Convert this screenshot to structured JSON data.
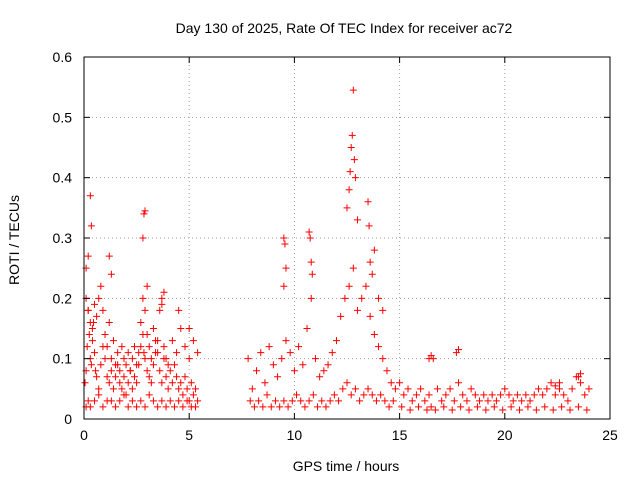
{
  "chart_data": {
    "type": "scatter",
    "title": "Day 130 of 2025, Rate Of TEC Index for receiver ac72",
    "xlabel": "GPS time / hours",
    "ylabel": "ROTI / TECUs",
    "xlim": [
      0,
      25
    ],
    "ylim": [
      0,
      0.6
    ],
    "xticks": [
      "0",
      "5",
      "10",
      "15",
      "20",
      "25"
    ],
    "yticks": [
      "0",
      "0.1",
      "0.2",
      "0.3",
      "0.4",
      "0.5",
      "0.6"
    ],
    "grid": true,
    "marker": "+",
    "color": "#ff0000",
    "series": [
      {
        "name": "ROTI",
        "x": [
          0.05,
          0.1,
          0.15,
          0.2,
          0.25,
          0.3,
          0.35,
          0.4,
          0.45,
          0.5,
          0.55,
          0.6,
          0.7,
          0.8,
          0.9,
          1.0,
          1.1,
          1.2,
          1.3,
          1.4,
          1.5,
          1.6,
          1.7,
          1.8,
          1.9,
          2.0,
          2.1,
          2.2,
          2.3,
          2.4,
          2.5,
          2.6,
          2.7,
          2.8,
          2.85,
          2.9,
          3.0,
          3.1,
          3.2,
          3.3,
          3.4,
          3.5,
          3.6,
          3.7,
          3.8,
          3.9,
          4.0,
          4.1,
          4.2,
          4.3,
          4.4,
          4.5,
          4.6,
          4.7,
          4.8,
          4.9,
          5.0,
          5.1,
          5.2,
          5.3,
          5.4,
          0.1,
          0.2,
          0.3,
          0.4,
          0.5,
          0.6,
          0.7,
          0.8,
          0.9,
          1.0,
          1.1,
          1.2,
          1.3,
          1.4,
          1.5,
          1.6,
          1.7,
          1.8,
          1.9,
          2.0,
          2.1,
          2.2,
          2.3,
          2.4,
          2.5,
          2.6,
          2.7,
          2.8,
          2.9,
          3.0,
          3.1,
          3.2,
          3.3,
          3.4,
          3.5,
          3.6,
          3.7,
          3.8,
          3.9,
          4.0,
          4.2,
          4.4,
          4.6,
          4.8,
          5.0,
          5.2,
          5.4,
          0.1,
          0.2,
          0.3,
          0.5,
          0.7,
          0.9,
          1.1,
          1.3,
          1.5,
          1.7,
          1.9,
          2.1,
          2.3,
          2.5,
          2.7,
          2.9,
          3.1,
          3.3,
          3.5,
          3.7,
          3.9,
          4.1,
          4.3,
          4.5,
          4.7,
          4.9,
          5.1,
          5.3,
          0.3,
          0.35,
          0.2,
          0.1,
          2.85,
          2.9,
          2.8,
          3.0,
          3.7,
          3.8,
          1.2,
          1.3,
          4.5,
          5.0,
          7.8,
          8.0,
          8.2,
          8.4,
          8.6,
          8.8,
          9.0,
          9.2,
          9.4,
          9.6,
          9.8,
          10.0,
          10.2,
          10.4,
          10.6,
          10.8,
          11.0,
          11.2,
          11.4,
          11.6,
          11.8,
          12.0,
          12.2,
          12.4,
          12.6,
          12.8,
          13.0,
          13.2,
          13.4,
          13.6,
          13.8,
          14.0,
          14.2,
          14.4,
          14.6,
          14.8,
          7.9,
          8.1,
          8.3,
          8.5,
          8.7,
          8.9,
          9.1,
          9.3,
          9.5,
          9.7,
          9.9,
          10.1,
          10.3,
          10.5,
          10.7,
          10.9,
          11.1,
          11.3,
          11.5,
          11.7,
          11.9,
          12.1,
          12.3,
          12.5,
          12.7,
          12.9,
          13.1,
          13.3,
          13.5,
          13.7,
          13.9,
          14.1,
          14.3,
          14.5,
          14.7,
          9.5,
          9.55,
          9.6,
          9.5,
          10.7,
          10.75,
          10.8,
          10.85,
          12.5,
          12.6,
          12.65,
          12.7,
          12.75,
          12.8,
          12.85,
          12.9,
          13.0,
          13.5,
          13.55,
          13.6,
          13.7,
          13.8,
          14.0,
          14.2,
          15.0,
          15.2,
          15.4,
          15.6,
          15.8,
          16.0,
          16.2,
          16.4,
          16.6,
          16.8,
          17.0,
          17.2,
          17.4,
          17.6,
          17.8,
          18.0,
          18.2,
          18.4,
          18.6,
          18.8,
          19.0,
          19.2,
          19.4,
          19.6,
          19.8,
          20.0,
          20.2,
          20.4,
          20.6,
          20.8,
          21.0,
          21.2,
          21.4,
          21.6,
          21.8,
          22.0,
          22.2,
          22.4,
          22.6,
          22.8,
          23.0,
          23.2,
          23.4,
          23.6,
          23.8,
          24.0,
          15.1,
          15.5,
          15.9,
          16.3,
          16.5,
          16.7,
          17.1,
          17.5,
          17.9,
          18.3,
          18.7,
          19.1,
          19.5,
          19.9,
          20.3,
          20.7,
          21.1,
          21.5,
          21.9,
          22.3,
          22.7,
          23.1,
          23.5,
          23.9,
          16.4,
          16.5,
          17.7,
          17.8,
          23.5,
          23.6,
          22.4,
          22.6
        ],
        "y": [
          0.06,
          0.08,
          0.12,
          0.18,
          0.14,
          0.1,
          0.09,
          0.13,
          0.16,
          0.11,
          0.08,
          0.07,
          0.05,
          0.09,
          0.12,
          0.1,
          0.07,
          0.06,
          0.08,
          0.05,
          0.07,
          0.09,
          0.06,
          0.05,
          0.07,
          0.04,
          0.06,
          0.08,
          0.05,
          0.07,
          0.06,
          0.09,
          0.12,
          0.14,
          0.11,
          0.1,
          0.08,
          0.07,
          0.06,
          0.09,
          0.11,
          0.13,
          0.08,
          0.06,
          0.1,
          0.07,
          0.05,
          0.08,
          0.06,
          0.09,
          0.07,
          0.05,
          0.06,
          0.04,
          0.07,
          0.05,
          0.03,
          0.06,
          0.04,
          0.05,
          0.03,
          0.2,
          0.18,
          0.16,
          0.15,
          0.19,
          0.17,
          0.2,
          0.22,
          0.18,
          0.14,
          0.12,
          0.16,
          0.1,
          0.13,
          0.09,
          0.11,
          0.08,
          0.12,
          0.1,
          0.09,
          0.11,
          0.08,
          0.1,
          0.12,
          0.09,
          0.11,
          0.16,
          0.2,
          0.18,
          0.14,
          0.12,
          0.1,
          0.15,
          0.13,
          0.11,
          0.18,
          0.2,
          0.12,
          0.1,
          0.09,
          0.13,
          0.11,
          0.15,
          0.12,
          0.1,
          0.13,
          0.11,
          0.02,
          0.03,
          0.02,
          0.03,
          0.04,
          0.02,
          0.03,
          0.03,
          0.02,
          0.03,
          0.04,
          0.02,
          0.03,
          0.02,
          0.03,
          0.02,
          0.04,
          0.03,
          0.02,
          0.03,
          0.02,
          0.03,
          0.02,
          0.03,
          0.02,
          0.03,
          0.02,
          0.02,
          0.37,
          0.32,
          0.27,
          0.25,
          0.34,
          0.345,
          0.3,
          0.22,
          0.19,
          0.21,
          0.27,
          0.24,
          0.18,
          0.15,
          0.1,
          0.05,
          0.08,
          0.11,
          0.06,
          0.12,
          0.09,
          0.07,
          0.1,
          0.13,
          0.11,
          0.08,
          0.12,
          0.09,
          0.15,
          0.2,
          0.1,
          0.07,
          0.08,
          0.09,
          0.11,
          0.13,
          0.17,
          0.2,
          0.22,
          0.25,
          0.18,
          0.2,
          0.22,
          0.17,
          0.14,
          0.12,
          0.1,
          0.08,
          0.06,
          0.05,
          0.03,
          0.02,
          0.03,
          0.02,
          0.04,
          0.02,
          0.03,
          0.02,
          0.03,
          0.02,
          0.03,
          0.04,
          0.03,
          0.02,
          0.03,
          0.04,
          0.02,
          0.03,
          0.02,
          0.03,
          0.04,
          0.03,
          0.05,
          0.06,
          0.04,
          0.05,
          0.03,
          0.04,
          0.05,
          0.04,
          0.03,
          0.04,
          0.03,
          0.02,
          0.03,
          0.3,
          0.29,
          0.25,
          0.22,
          0.31,
          0.3,
          0.26,
          0.24,
          0.35,
          0.38,
          0.41,
          0.45,
          0.47,
          0.545,
          0.43,
          0.4,
          0.33,
          0.36,
          0.32,
          0.26,
          0.24,
          0.28,
          0.2,
          0.18,
          0.06,
          0.04,
          0.05,
          0.03,
          0.04,
          0.05,
          0.03,
          0.04,
          0.1,
          0.05,
          0.03,
          0.04,
          0.05,
          0.03,
          0.06,
          0.04,
          0.03,
          0.05,
          0.04,
          0.03,
          0.04,
          0.03,
          0.04,
          0.03,
          0.04,
          0.05,
          0.04,
          0.03,
          0.04,
          0.03,
          0.04,
          0.03,
          0.04,
          0.05,
          0.04,
          0.05,
          0.06,
          0.04,
          0.05,
          0.04,
          0.03,
          0.05,
          0.07,
          0.06,
          0.04,
          0.05,
          0.02,
          0.015,
          0.02,
          0.015,
          0.02,
          0.015,
          0.02,
          0.015,
          0.02,
          0.015,
          0.02,
          0.015,
          0.02,
          0.015,
          0.02,
          0.015,
          0.02,
          0.015,
          0.02,
          0.015,
          0.02,
          0.015,
          0.02,
          0.015,
          0.1,
          0.105,
          0.11,
          0.115,
          0.07,
          0.075,
          0.055,
          0.06
        ]
      }
    ]
  }
}
